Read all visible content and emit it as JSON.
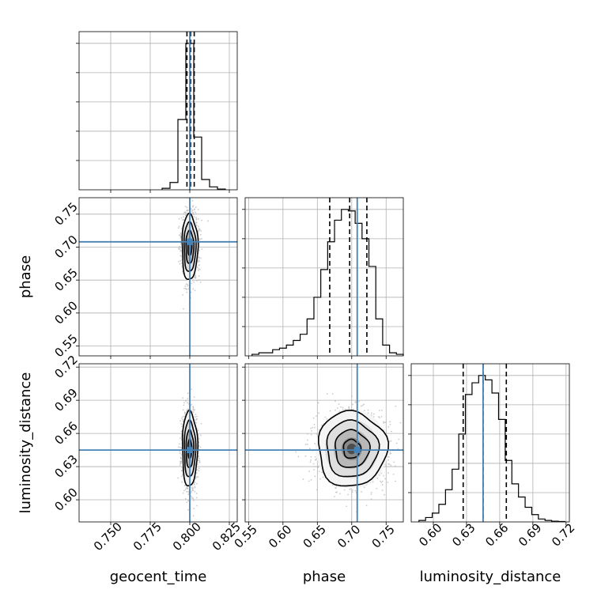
{
  "chart_data": {
    "type": "corner",
    "parameters": [
      "geocent_time",
      "phase",
      "luminosity_distance"
    ],
    "truths": [
      0.8,
      0.708,
      0.645
    ],
    "grid": true,
    "panels": [
      {
        "id": "hist-geocent_time",
        "type": "histogram",
        "x": "geocent_time",
        "xlim": [
          0.73,
          0.83
        ],
        "xticks": [
          0.75,
          0.775,
          0.8,
          0.825
        ],
        "tick_labels_shown": false,
        "bins": [
          0.7825,
          0.7875,
          0.7925,
          0.7975,
          0.8025,
          0.8075,
          0.8125,
          0.8175,
          0.8225
        ],
        "values": [
          0.01,
          0.05,
          0.48,
          1.0,
          0.36,
          0.07,
          0.02,
          0.005
        ],
        "quantiles": [
          0.7982,
          0.8005,
          0.8028
        ],
        "truth": 0.8
      },
      {
        "id": "hist-phase",
        "type": "histogram",
        "x": "phase",
        "xlim": [
          0.545,
          0.775
        ],
        "xticks": [
          0.55,
          0.6,
          0.65,
          0.7,
          0.75
        ],
        "tick_labels_shown": false,
        "bins": [
          0.555,
          0.565,
          0.575,
          0.585,
          0.595,
          0.605,
          0.615,
          0.625,
          0.635,
          0.645,
          0.655,
          0.665,
          0.675,
          0.685,
          0.695,
          0.705,
          0.715,
          0.725,
          0.735,
          0.745,
          0.755,
          0.765,
          0.775
        ],
        "values": [
          0.01,
          0.02,
          0.02,
          0.04,
          0.05,
          0.07,
          0.1,
          0.14,
          0.24,
          0.38,
          0.56,
          0.74,
          0.88,
          0.95,
          0.94,
          0.86,
          0.76,
          0.58,
          0.24,
          0.07,
          0.02,
          0.01
        ],
        "quantiles": [
          0.668,
          0.697,
          0.722
        ],
        "truth": 0.708
      },
      {
        "id": "hist-luminosity_distance",
        "type": "histogram",
        "x": "luminosity_distance",
        "xlim": [
          0.58,
          0.723
        ],
        "xticks": [
          0.6,
          0.63,
          0.66,
          0.69,
          0.72
        ],
        "tick_labels": [
          "0.60",
          "0.63",
          "0.66",
          "0.69",
          "0.72"
        ],
        "bins": [
          0.587,
          0.593,
          0.599,
          0.605,
          0.611,
          0.617,
          0.623,
          0.629,
          0.635,
          0.641,
          0.647,
          0.653,
          0.659,
          0.665,
          0.671,
          0.677,
          0.683,
          0.689,
          0.695,
          0.701,
          0.707,
          0.713,
          0.719
        ],
        "values": [
          0.01,
          0.03,
          0.06,
          0.12,
          0.22,
          0.36,
          0.6,
          0.87,
          0.95,
          1.0,
          0.97,
          0.88,
          0.7,
          0.42,
          0.26,
          0.17,
          0.1,
          0.05,
          0.02,
          0.01,
          0.005,
          0.003
        ],
        "quantiles": [
          0.627,
          0.645,
          0.666
        ],
        "truth": 0.645
      },
      {
        "id": "scatter-geocent_time-phase",
        "type": "2d-density",
        "x": "geocent_time",
        "y": "phase",
        "xlim": [
          0.73,
          0.83
        ],
        "ylim": [
          0.535,
          0.775
        ],
        "yticks": [
          0.55,
          0.6,
          0.65,
          0.7,
          0.75
        ],
        "ytick_labels": [
          "0.55",
          "0.60",
          "0.65",
          "0.70",
          "0.75"
        ],
        "center": [
          0.8,
          0.7
        ],
        "sigma": [
          0.0025,
          0.025
        ],
        "contour_levels_sigma": [
          0.5,
          1.0,
          1.5,
          2.0
        ],
        "truth": [
          0.8,
          0.708
        ]
      },
      {
        "id": "scatter-geocent_time-luminosity_distance",
        "type": "2d-density",
        "x": "geocent_time",
        "y": "luminosity_distance",
        "xlim": [
          0.73,
          0.83
        ],
        "ylim": [
          0.58,
          0.723
        ],
        "xticks": [
          0.75,
          0.775,
          0.8,
          0.825
        ],
        "xtick_labels": [
          "0.750",
          "0.775",
          "0.800",
          "0.825"
        ],
        "yticks": [
          0.6,
          0.63,
          0.66,
          0.69,
          0.72
        ],
        "ytick_labels": [
          "0.60",
          "0.63",
          "0.66",
          "0.69",
          "0.72"
        ],
        "center": [
          0.8,
          0.646
        ],
        "sigma": [
          0.0024,
          0.017
        ],
        "contour_levels_sigma": [
          0.5,
          1.0,
          1.5,
          2.0
        ],
        "truth": [
          0.8,
          0.645
        ]
      },
      {
        "id": "scatter-phase-luminosity_distance",
        "type": "2d-density",
        "x": "phase",
        "y": "luminosity_distance",
        "xlim": [
          0.545,
          0.775
        ],
        "ylim": [
          0.58,
          0.723
        ],
        "xticks": [
          0.55,
          0.6,
          0.65,
          0.7,
          0.75
        ],
        "xtick_labels": [
          "0.55",
          "0.60",
          "0.65",
          "0.70",
          "0.75"
        ],
        "center": [
          0.7,
          0.646
        ],
        "sigma": [
          0.025,
          0.017
        ],
        "contour_levels_sigma": [
          0.5,
          1.0,
          1.5,
          2.0
        ],
        "truth": [
          0.708,
          0.645
        ]
      }
    ],
    "xlabels": [
      "geocent_time",
      "phase",
      "luminosity_distance"
    ],
    "ylabels": [
      "phase",
      "luminosity_distance"
    ],
    "colors": {
      "truth": "#4682b4",
      "hist": "#000000",
      "points": "#bdbdbd",
      "grid": "#b0b0b0"
    }
  }
}
